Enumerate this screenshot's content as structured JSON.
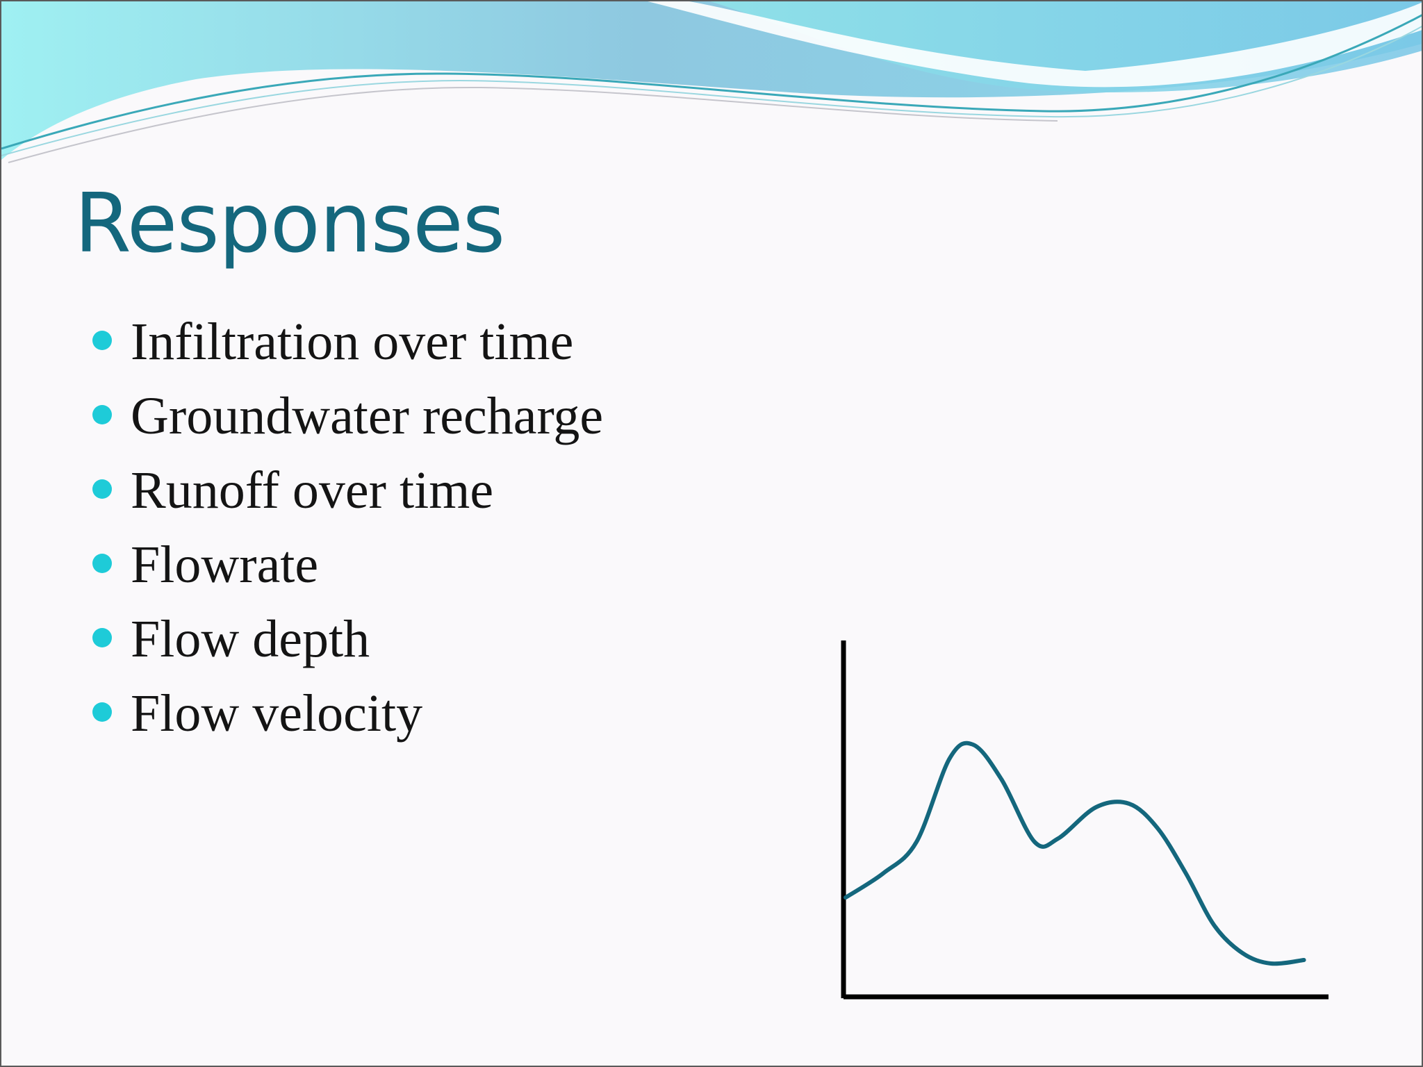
{
  "slide": {
    "title": "Responses",
    "bullets": [
      "Infiltration over time",
      "Groundwater recharge",
      "Runoff over time",
      "Flowrate",
      "Flow depth",
      "Flow velocity"
    ]
  },
  "colors": {
    "title": "#14677d",
    "bullet_dot": "#1ecbd8",
    "curve": "#14677d",
    "axes": "#000000",
    "wave_light": "#8fe8ee",
    "wave_blue": "#7fc0e4"
  },
  "icons": {
    "bullet": "filled-circle"
  },
  "chart_data": {
    "type": "line",
    "title": "",
    "xlabel": "",
    "ylabel": "",
    "grid": false,
    "ticks": false,
    "series": [
      {
        "x": [
          0,
          0.08,
          0.15,
          0.22,
          0.27,
          0.33,
          0.4,
          0.45,
          0.53,
          0.6,
          0.66,
          0.72,
          0.78,
          0.84,
          0.9,
          0.97
        ],
        "values": [
          0.28,
          0.35,
          0.44,
          0.68,
          0.72,
          0.62,
          0.44,
          0.45,
          0.54,
          0.55,
          0.48,
          0.35,
          0.2,
          0.12,
          0.09,
          0.1
        ]
      }
    ]
  }
}
